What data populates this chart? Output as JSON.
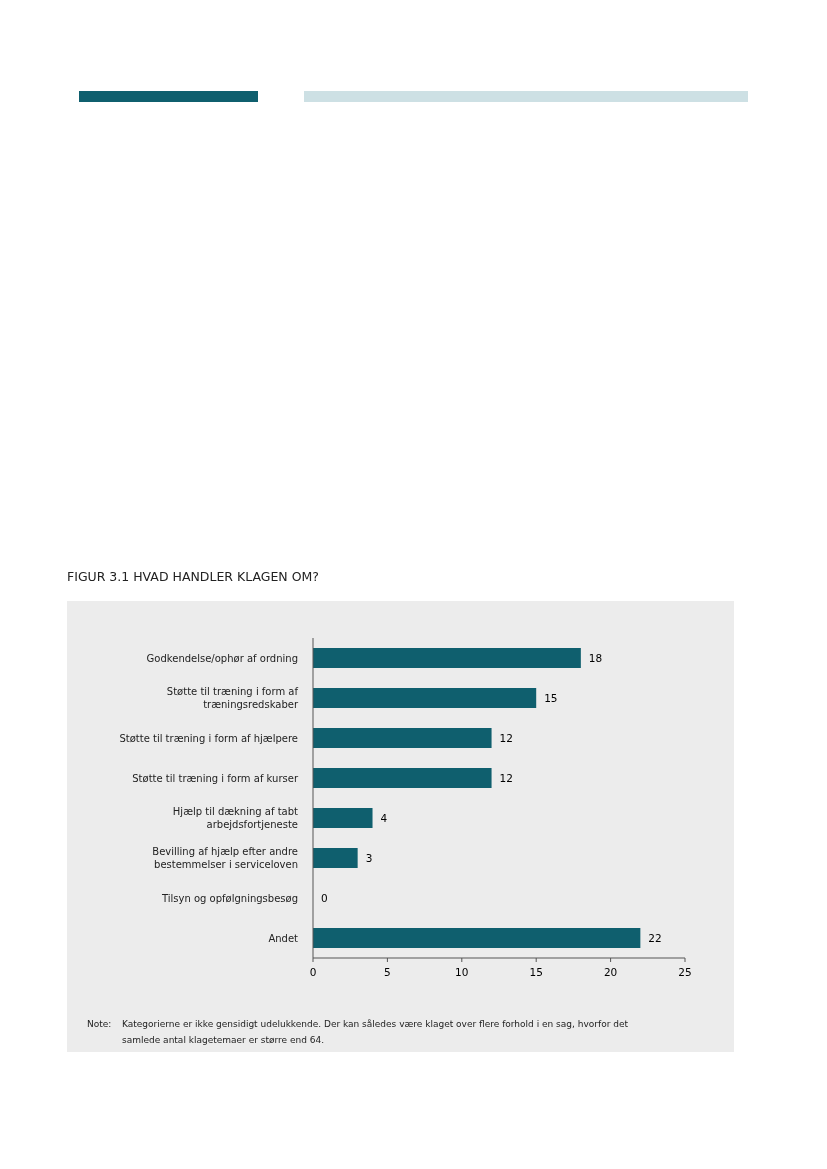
{
  "chart_data": {
    "type": "bar",
    "orientation": "horizontal",
    "title": "FIGUR 3.1 HVAD HANDLER KLAGEN OM?",
    "categories": [
      "Godkendelse/ophør af ordning",
      "Støtte til træning i form af træningsredskaber",
      "Støtte til træning i form af hjælpere",
      "Støtte til træning i form af kurser",
      "Hjælp til dækning af tabt arbejdsfortjeneste",
      "Bevilling af hjælp efter andre bestemmelser i serviceloven",
      "Tilsyn og opfølgningsbesøg",
      "Andet"
    ],
    "values": [
      18,
      15,
      12,
      12,
      4,
      3,
      0,
      22
    ],
    "color": "#0f5f6e",
    "xlim": [
      0,
      25
    ],
    "xticks": [
      0,
      5,
      10,
      15,
      20,
      25
    ],
    "grid": false,
    "data_labels": true,
    "annotations": [
      "Note: Kategorierne er ikke gensidigt udelukkende. Der kan således være klaget over flere forhold i en sag, hvorfor det samlede antal klagetemaer er større end 64."
    ]
  }
}
